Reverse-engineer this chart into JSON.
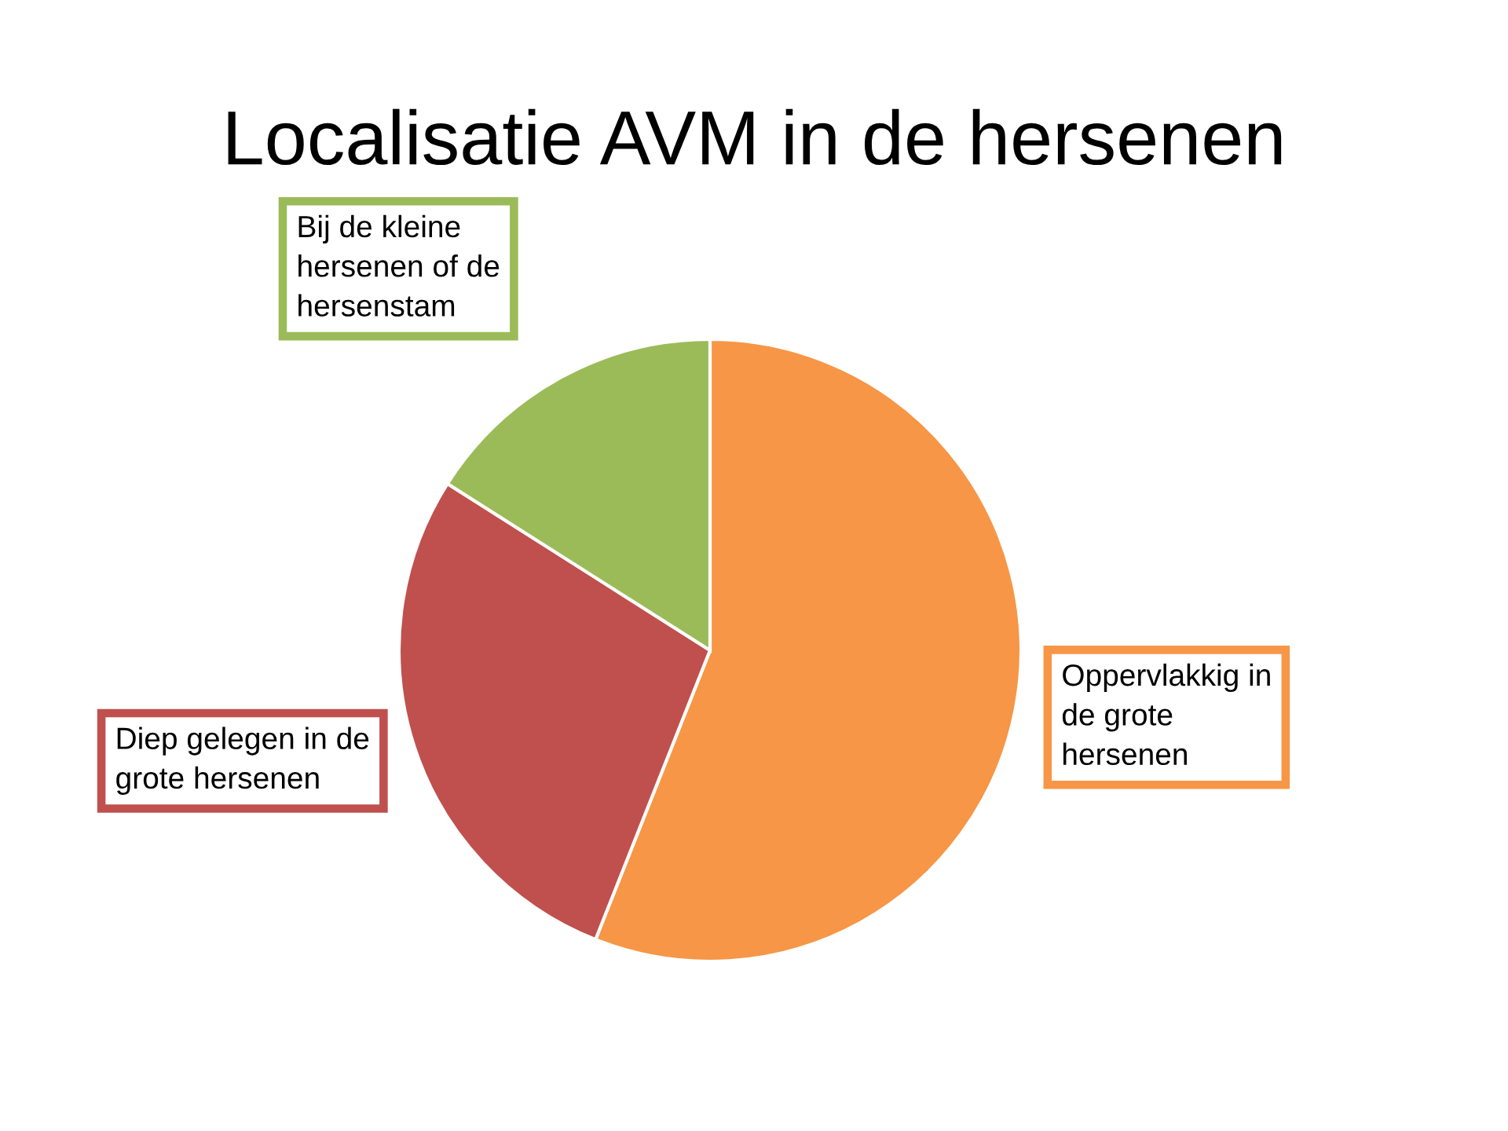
{
  "chart_data": {
    "type": "pie",
    "title": "Localisatie AVM in de hersenen",
    "categories": [
      "Oppervlakkig in\nde grote\nhersenen",
      "Diep gelegen in de\ngrote hersenen",
      "Bij de kleine\nhersenen of de\nhersenstam"
    ],
    "values": [
      56,
      28,
      16
    ],
    "colors": [
      "#f79646",
      "#c0504d",
      "#9bbb59"
    ]
  }
}
